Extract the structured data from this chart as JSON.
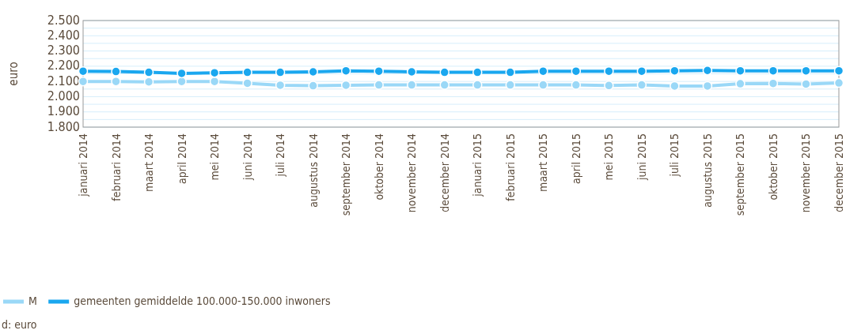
{
  "chart_data": {
    "type": "line",
    "ylabel": "euro",
    "categories": [
      "januari 2014",
      "februari 2014",
      "maart 2014",
      "april 2014",
      "mei 2014",
      "juni 2014",
      "juli 2014",
      "augustus 2014",
      "september 2014",
      "oktober 2014",
      "november 2014",
      "december 2014",
      "januari 2015",
      "februari 2015",
      "maart 2015",
      "april 2015",
      "mei 2015",
      "juni 2015",
      "juli 2015",
      "augustus 2015",
      "september 2015",
      "oktober 2015",
      "november 2015",
      "december 2015"
    ],
    "series": [
      {
        "name": "M",
        "color": "#9ad8f7",
        "values": [
          2100,
          2100,
          2097,
          2100,
          2100,
          2088,
          2075,
          2072,
          2075,
          2077,
          2077,
          2077,
          2077,
          2077,
          2077,
          2077,
          2073,
          2077,
          2070,
          2070,
          2085,
          2087,
          2083,
          2090
        ]
      },
      {
        "name": "gemeenten gemiddelde 100.000-150.000 inwoners",
        "color": "#1aa7ef",
        "values": [
          2167,
          2165,
          2160,
          2153,
          2157,
          2160,
          2160,
          2163,
          2170,
          2167,
          2163,
          2160,
          2160,
          2160,
          2167,
          2167,
          2167,
          2167,
          2170,
          2172,
          2170,
          2170,
          2170,
          2170
        ]
      }
    ],
    "ylim": [
      1800,
      2500
    ],
    "yticks": [
      {
        "value": 1800,
        "label": "1.800"
      },
      {
        "value": 1850,
        "label": null
      },
      {
        "value": 1900,
        "label": "1.900"
      },
      {
        "value": 1950,
        "label": null
      },
      {
        "value": 2000,
        "label": "2.000"
      },
      {
        "value": 2050,
        "label": null
      },
      {
        "value": 2100,
        "label": "2.100"
      },
      {
        "value": 2150,
        "label": null
      },
      {
        "value": 2200,
        "label": "2.200"
      },
      {
        "value": 2250,
        "label": null
      },
      {
        "value": 2300,
        "label": "2.300"
      },
      {
        "value": 2350,
        "label": null
      },
      {
        "value": 2400,
        "label": "2.400"
      },
      {
        "value": 2450,
        "label": null
      },
      {
        "value": 2500,
        "label": "2.500"
      }
    ],
    "grid": true,
    "marker": "circle",
    "line_style": "solid",
    "legend": "bottom left",
    "annotations": [
      "d: euro"
    ]
  }
}
